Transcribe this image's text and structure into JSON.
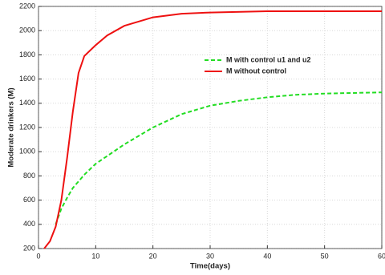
{
  "chart_data": {
    "type": "line",
    "xlabel": "Time(days)",
    "ylabel": "Moderate drinkers (M)",
    "xlim": [
      0,
      60
    ],
    "xticks": [
      0,
      10,
      20,
      30,
      40,
      50,
      60
    ],
    "ylim": [
      200,
      2200
    ],
    "yticks": [
      200,
      400,
      600,
      800,
      1000,
      1200,
      1400,
      1600,
      1800,
      2000,
      2200
    ],
    "grid": true,
    "legend": "upper-center",
    "series": [
      {
        "name": "M with control u1 and u2",
        "color": "#22dd22",
        "dash": true,
        "x": [
          3,
          4,
          5,
          6,
          8,
          10,
          15,
          20,
          25,
          30,
          35,
          40,
          45,
          50,
          60
        ],
        "values": [
          400,
          530,
          620,
          700,
          810,
          900,
          1060,
          1200,
          1310,
          1380,
          1420,
          1450,
          1470,
          1480,
          1490
        ]
      },
      {
        "name": "M without control",
        "color": "#ee1111",
        "dash": false,
        "x": [
          1,
          2,
          3,
          4,
          5,
          6,
          7,
          8,
          10,
          12,
          15,
          20,
          25,
          30,
          40,
          50,
          60
        ],
        "values": [
          200,
          260,
          380,
          600,
          950,
          1330,
          1650,
          1790,
          1880,
          1960,
          2040,
          2110,
          2140,
          2150,
          2160,
          2160,
          2160
        ]
      }
    ]
  }
}
